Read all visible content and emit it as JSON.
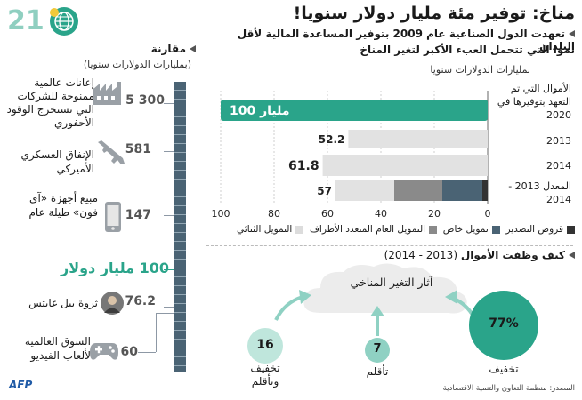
{
  "header": {
    "number": "21",
    "title": "مناخ: توفير مئة مليار دولار سنويا!",
    "subtitle": "تعهدت الدول الصناعية عام 2009 بتوفير المساعدة المالية لأقل البلدان",
    "subtitle2": "نموا التي تتحمل العبء الأكبر لتغير المناخ"
  },
  "colors": {
    "teal": "#2aa48a",
    "dark": "#333333",
    "steel": "#4a6374",
    "mid": "#8a8a8a",
    "light": "#dddddd",
    "grey_bar": "#e2e2e2"
  },
  "comparison": {
    "title": "مقارنة",
    "unit": "(بمليارات الدولارات سنويا)",
    "items": [
      {
        "value": "5 300",
        "label": "إعانات عالمية ممنوحة للشركات التي تستخرج الوقود الأحفوري",
        "icon": "factory-icon"
      },
      {
        "value": "581",
        "label": "الإنفاق العسكري الأميركي",
        "icon": "rifle-icon"
      },
      {
        "value": "147",
        "label": "مبيع أجهزة «آي فون» طيلة عام",
        "icon": "phone-icon"
      },
      {
        "value": "100 مليار دولار",
        "label": "",
        "icon": ""
      },
      {
        "value": "76.2",
        "label": "ثروة بيل غايتس",
        "icon": "person-icon"
      },
      {
        "value": "60",
        "label": "السوق العالمية لألعاب الفيديو",
        "icon": "gamepad-icon"
      }
    ]
  },
  "chart_data": {
    "type": "bar",
    "orientation": "horizontal-stacked",
    "unit_label": "بمليارات الدولارات سنويا",
    "categories": [
      "الأموال التي تم التعهد بتوفيرها في 2020",
      "2013",
      "2014",
      "المعدل 2013 - 2014"
    ],
    "value_labels": [
      "100 مليار",
      "52.2",
      "61.8",
      "57"
    ],
    "series": [
      {
        "name": "قروض التصدير",
        "values": [
          0,
          0,
          0,
          2
        ]
      },
      {
        "name": "تمويل خاص",
        "values": [
          0,
          0,
          0,
          15
        ]
      },
      {
        "name": "التمويل العام المتعدد الأطراف",
        "values": [
          0,
          0,
          0,
          18
        ]
      },
      {
        "name": "التمويل الثنائي",
        "values": [
          0,
          52.2,
          61.8,
          22
        ]
      },
      {
        "name": "",
        "values": [
          100,
          0,
          0,
          0
        ]
      }
    ],
    "xlim": [
      100,
      0
    ],
    "xticks": [
      "100",
      "80",
      "60",
      "40",
      "20",
      "0"
    ],
    "tick_values": [
      100,
      80,
      60,
      40,
      20,
      0
    ],
    "grid": true
  },
  "usage": {
    "title": "كيف وظفت الأموال",
    "period": "(2013 - 2014)",
    "cloud": "آثار التغير المناخي",
    "circles": [
      {
        "value": "77%",
        "label": "تخفيف",
        "share": 77
      },
      {
        "value": "7",
        "label": "تأقلم",
        "share": 7
      },
      {
        "value": "16",
        "label": "تخفيف وتأقلم",
        "share": 16
      }
    ]
  },
  "footer": {
    "source": "المصدر: منظمة التعاون والتنمية الاقتصادية",
    "logo": "AFP"
  }
}
